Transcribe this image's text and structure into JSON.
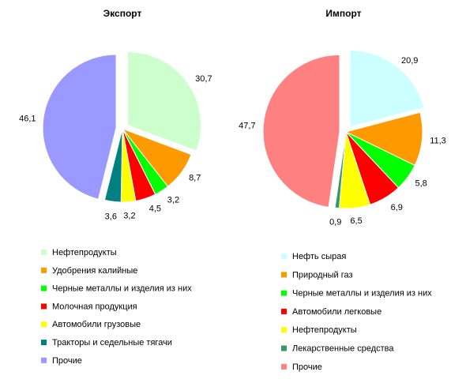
{
  "chart_data": [
    {
      "type": "pie",
      "title": "Экспорт",
      "series": [
        {
          "name": "Нефтепродукты",
          "value": 30.7,
          "label": "30,7",
          "color": "#ccffcc"
        },
        {
          "name": "Удобрения калийные",
          "value": 8.7,
          "label": "8,7",
          "color": "#ff9900"
        },
        {
          "name": "Черные металлы и изделия из них",
          "value": 3.2,
          "label": "3,2",
          "color": "#00ff00"
        },
        {
          "name": "Молочная продукция",
          "value": 4.5,
          "label": "4,5",
          "color": "#ff0000"
        },
        {
          "name": "Автомобили грузовые",
          "value": 3.2,
          "label": "3,2",
          "color": "#ffff00"
        },
        {
          "name": "Тракторы и седельные тягачи",
          "value": 3.6,
          "label": "3,6",
          "color": "#008080"
        },
        {
          "name": "Прочие",
          "value": 46.1,
          "label": "46,1",
          "color": "#9999ff"
        }
      ],
      "exploded": [
        "Нефтепродукты",
        "Прочие"
      ],
      "legend_position": "bottom"
    },
    {
      "type": "pie",
      "title": "Импорт",
      "series": [
        {
          "name": "Нефть сырая",
          "value": 20.9,
          "label": "20,9",
          "color": "#ccffff"
        },
        {
          "name": "Природный газ",
          "value": 11.3,
          "label": "11,3",
          "color": "#ff9900"
        },
        {
          "name": "Черные металлы и изделия из них",
          "value": 5.8,
          "label": "5,8",
          "color": "#00ff00"
        },
        {
          "name": "Автомобили легковые",
          "value": 6.9,
          "label": "6,9",
          "color": "#ff0000"
        },
        {
          "name": "Нефтепродукты",
          "value": 6.5,
          "label": "6,5",
          "color": "#ffff00"
        },
        {
          "name": "Лекарственные средства",
          "value": 0.9,
          "label": "0,9",
          "color": "#339966"
        },
        {
          "name": "Прочие",
          "value": 47.7,
          "label": "47,7",
          "color": "#ff8080"
        }
      ],
      "exploded": [
        "Нефть сырая",
        "Прочие"
      ],
      "legend_position": "bottom"
    }
  ]
}
